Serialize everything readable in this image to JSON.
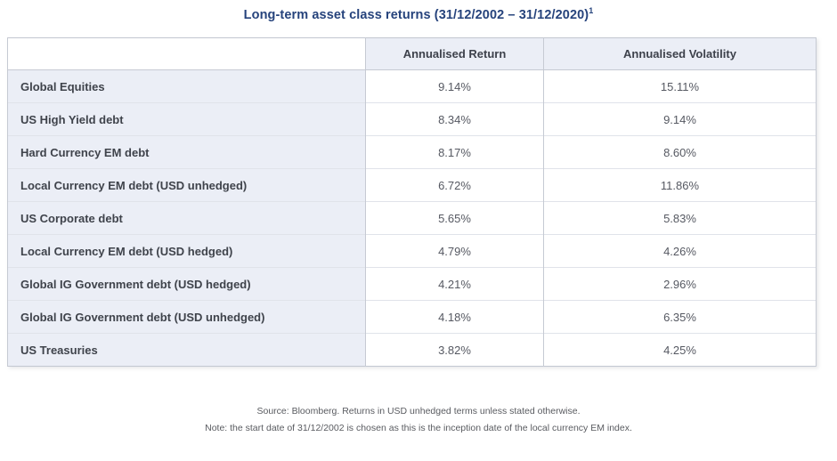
{
  "title": {
    "text": "Long-term asset class returns (31/12/2002 – 31/12/2020)",
    "superscript": "1"
  },
  "table": {
    "columns": [
      "",
      "Annualised Return",
      "Annualised Volatility"
    ],
    "rows": [
      {
        "label": "Global Equities",
        "annualised_return": "9.14%",
        "annualised_volatility": "15.11%"
      },
      {
        "label": "US High Yield debt",
        "annualised_return": "8.34%",
        "annualised_volatility": "9.14%"
      },
      {
        "label": "Hard Currency EM debt",
        "annualised_return": "8.17%",
        "annualised_volatility": "8.60%"
      },
      {
        "label": "Local Currency EM debt (USD unhedged)",
        "annualised_return": "6.72%",
        "annualised_volatility": "11.86%"
      },
      {
        "label": "US Corporate debt",
        "annualised_return": "5.65%",
        "annualised_volatility": "5.83%"
      },
      {
        "label": "Local Currency EM debt (USD hedged)",
        "annualised_return": "4.79%",
        "annualised_volatility": "4.26%"
      },
      {
        "label": "Global IG Government debt (USD hedged)",
        "annualised_return": "4.21%",
        "annualised_volatility": "2.96%"
      },
      {
        "label": "Global IG Government debt (USD unhedged)",
        "annualised_return": "4.18%",
        "annualised_volatility": "6.35%"
      },
      {
        "label": "US Treasuries",
        "annualised_return": "3.82%",
        "annualised_volatility": "4.25%"
      }
    ]
  },
  "footnotes": {
    "source": "Source: Bloomberg. Returns in USD unhedged terms unless stated otherwise.",
    "note": "Note: the start date of 31/12/2002 is chosen as this is the inception date of the local currency EM index."
  },
  "colors": {
    "title_text": "#26437c",
    "header_background": "#ebeef6",
    "label_column_background": "#ebeef6",
    "cell_text": "#565962",
    "label_text": "#3f434b",
    "border": "#c6cad3",
    "row_separator": "#e0e3ea",
    "footnote_text": "#595b60"
  }
}
